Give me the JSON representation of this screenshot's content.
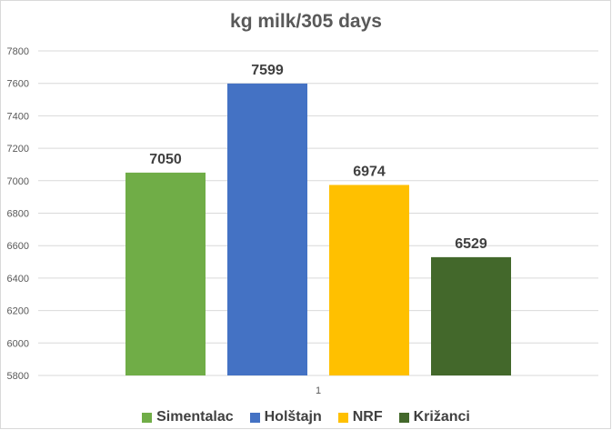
{
  "chart_data": {
    "type": "bar",
    "title": "kg milk/305 days",
    "xlabel": "",
    "ylabel": "",
    "ylim": [
      5800,
      7800
    ],
    "yticks": [
      5800,
      6000,
      6200,
      6400,
      6600,
      6800,
      7000,
      7200,
      7400,
      7600,
      7800
    ],
    "categories": [
      "1"
    ],
    "grid": true,
    "legend_position": "bottom",
    "series": [
      {
        "name": "Simentalac",
        "values": [
          7050
        ],
        "color": "#70ad47"
      },
      {
        "name": "Holštajn",
        "values": [
          7599
        ],
        "color": "#4472c4"
      },
      {
        "name": "NRF",
        "values": [
          6974
        ],
        "color": "#ffc000"
      },
      {
        "name": "Križanci",
        "values": [
          6529
        ],
        "color": "#43682b"
      }
    ]
  }
}
